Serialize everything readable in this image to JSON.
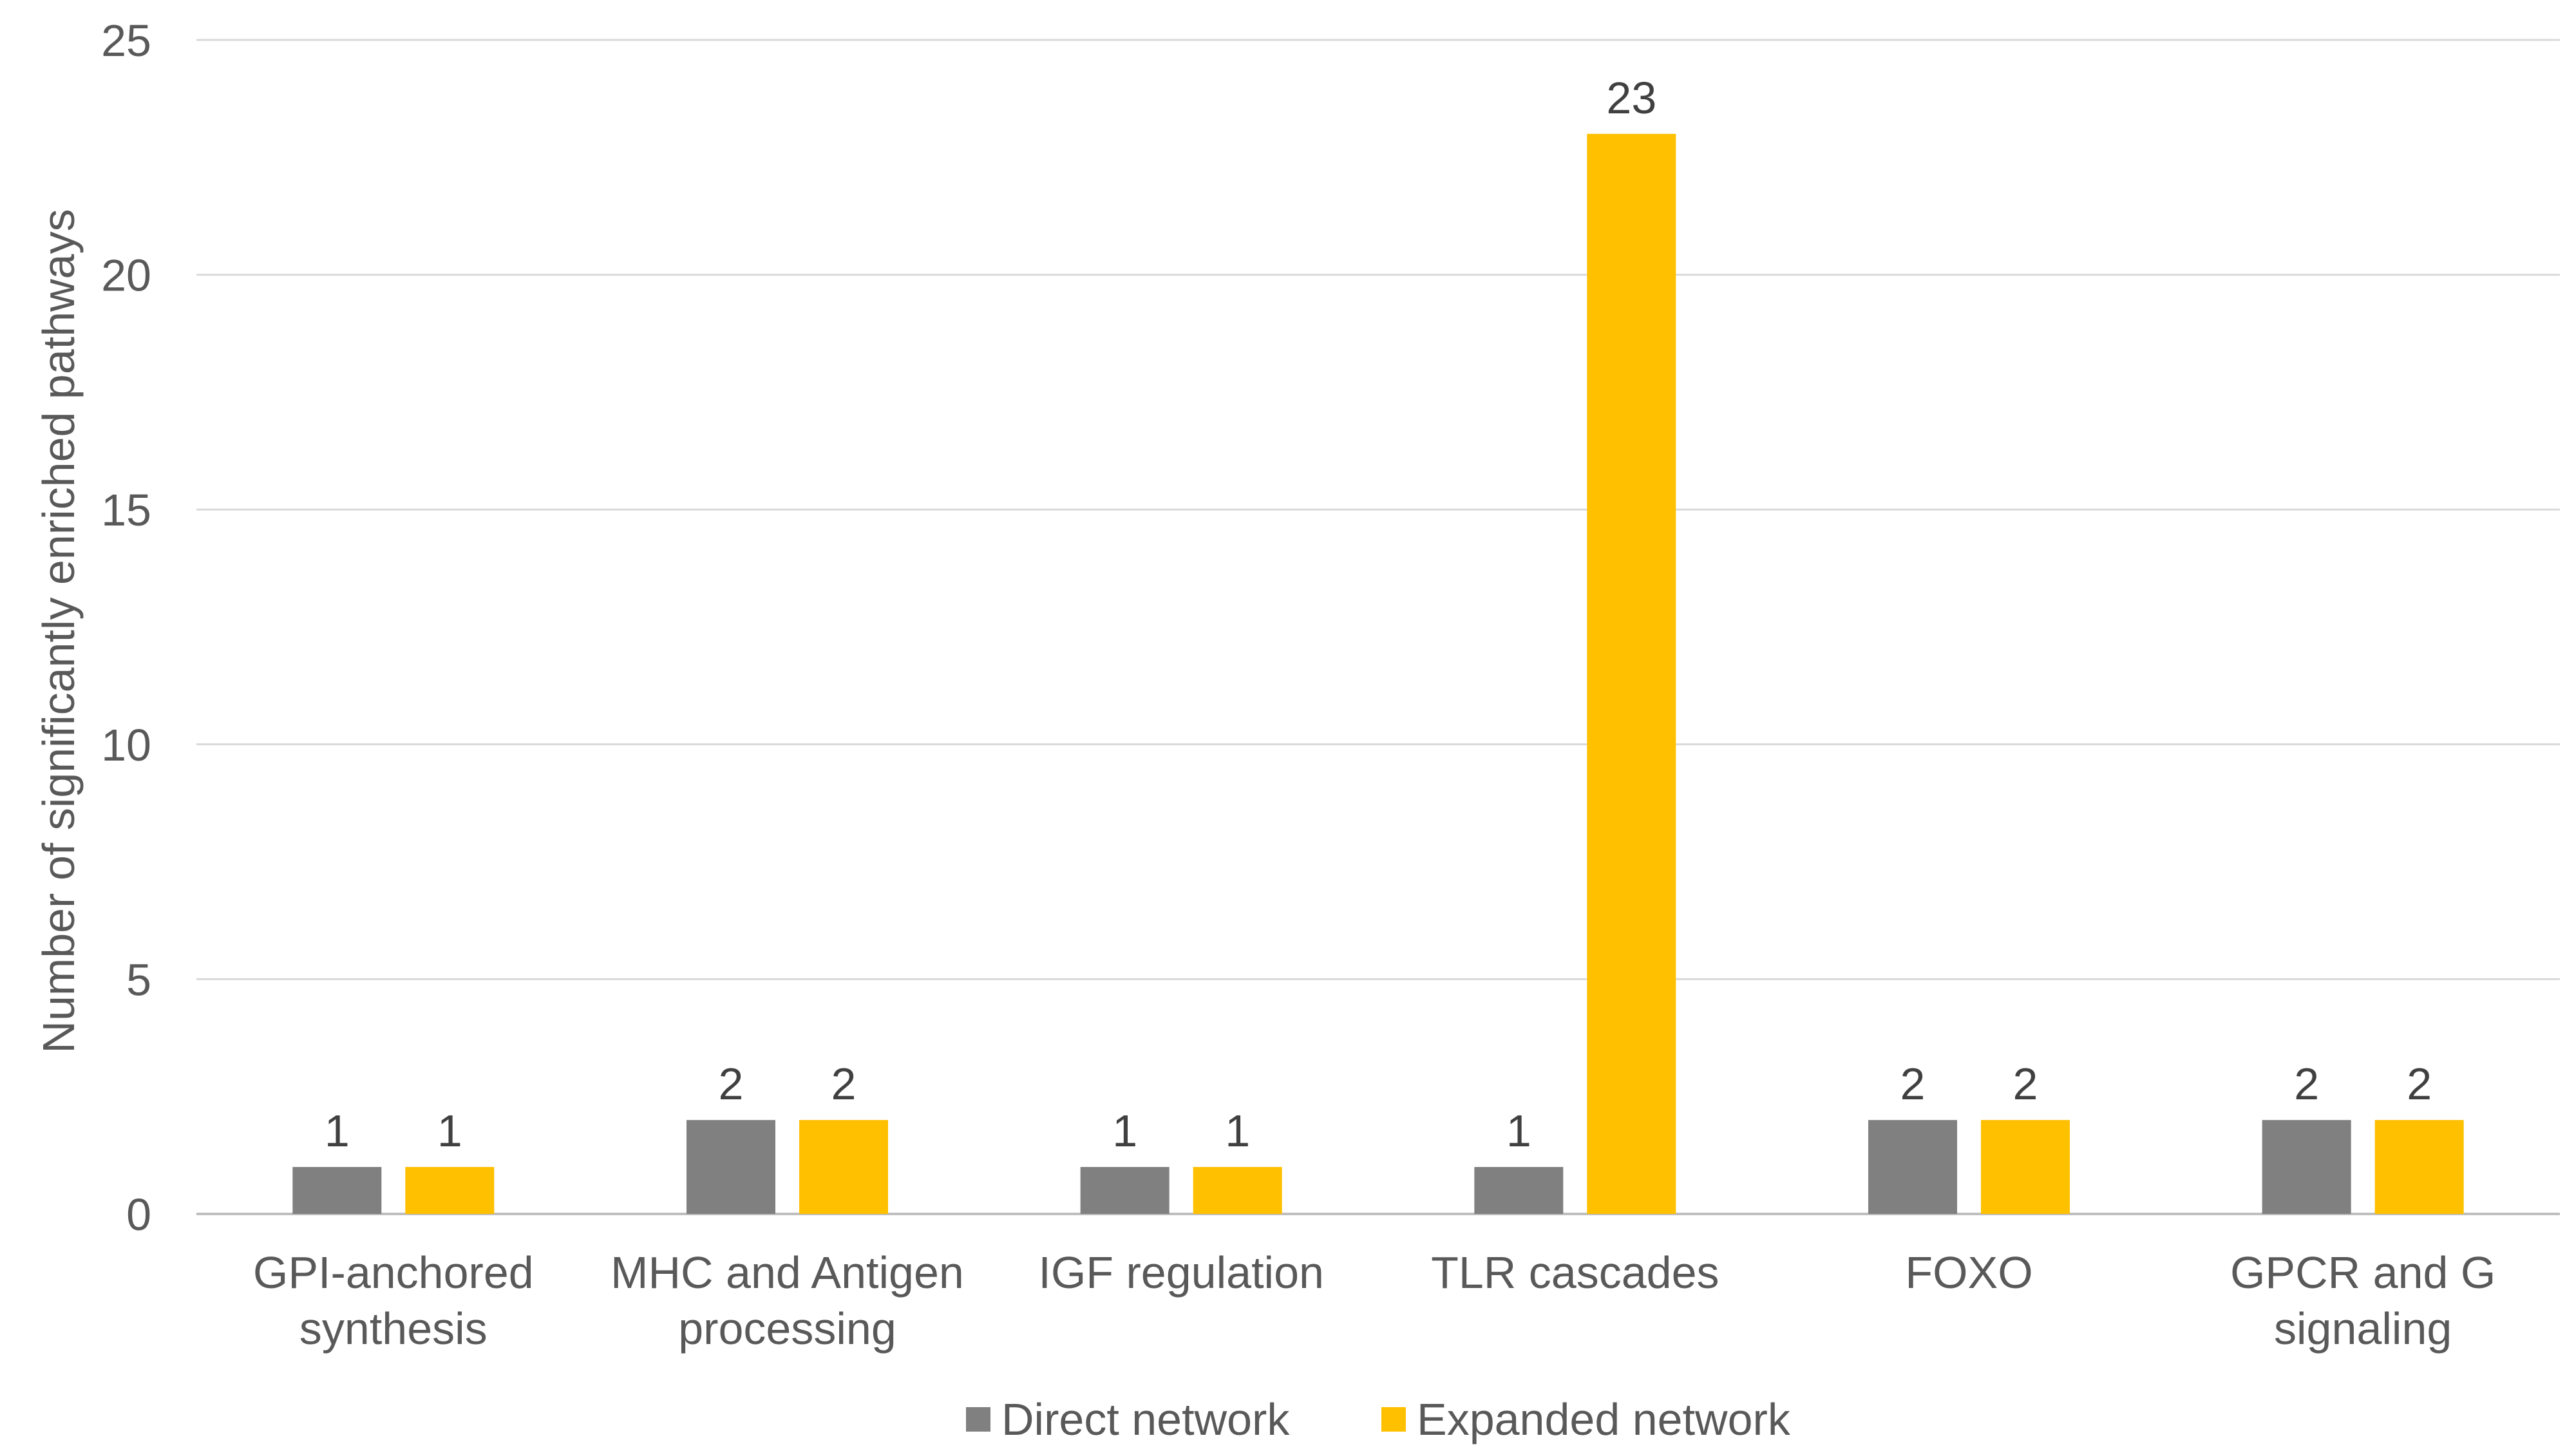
{
  "chart_data": {
    "type": "bar",
    "title": "",
    "xlabel": "",
    "ylabel": "Number of significantly enriched pathways",
    "ylim": [
      0,
      25
    ],
    "yticks": [
      0,
      5,
      10,
      15,
      20,
      25
    ],
    "grid": true,
    "legend_position": "bottom",
    "categories": [
      [
        "GPI-anchored",
        "synthesis"
      ],
      [
        "MHC and Antigen",
        "processing"
      ],
      [
        "IGF regulation"
      ],
      [
        "TLR cascades"
      ],
      [
        "FOXO"
      ],
      [
        "GPCR and G",
        "signaling"
      ]
    ],
    "series": [
      {
        "name": "Direct network",
        "color": "#808080",
        "values": [
          1,
          2,
          1,
          1,
          2,
          2
        ]
      },
      {
        "name": "Expanded network",
        "color": "#FFC000",
        "values": [
          1,
          2,
          1,
          23,
          2,
          2
        ]
      }
    ]
  }
}
